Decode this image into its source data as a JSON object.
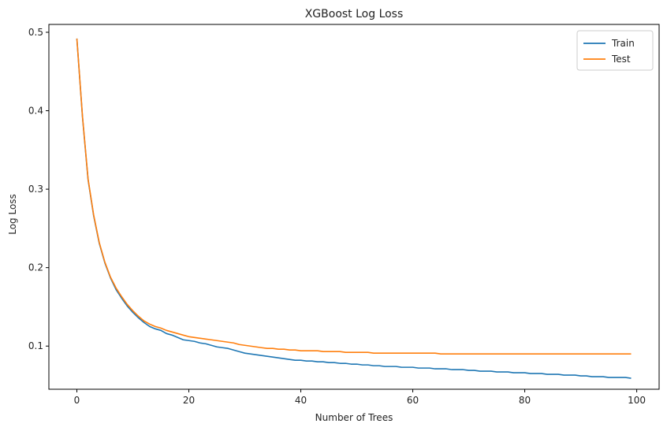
{
  "chart_data": {
    "type": "line",
    "title": "XGBoost Log Loss",
    "xlabel": "Number of Trees",
    "ylabel": "Log Loss",
    "xlim": [
      -5,
      104
    ],
    "ylim": [
      0.045,
      0.51
    ],
    "xticks": [
      0,
      20,
      40,
      60,
      80,
      100
    ],
    "yticks": [
      0.1,
      0.2,
      0.3,
      0.4,
      0.5
    ],
    "xtick_labels": [
      "0",
      "20",
      "40",
      "60",
      "80",
      "100"
    ],
    "ytick_labels": [
      "0.1",
      "0.2",
      "0.3",
      "0.4",
      "0.5"
    ],
    "grid": false,
    "legend_position": "top-right",
    "series": [
      {
        "name": "Train",
        "color": "#1f77b4",
        "values": [
          0.492,
          0.392,
          0.312,
          0.266,
          0.231,
          0.206,
          0.187,
          0.172,
          0.161,
          0.151,
          0.143,
          0.136,
          0.13,
          0.125,
          0.122,
          0.12,
          0.116,
          0.114,
          0.111,
          0.108,
          0.107,
          0.106,
          0.104,
          0.103,
          0.101,
          0.099,
          0.098,
          0.097,
          0.095,
          0.093,
          0.091,
          0.09,
          0.089,
          0.088,
          0.087,
          0.086,
          0.085,
          0.084,
          0.083,
          0.082,
          0.082,
          0.081,
          0.081,
          0.08,
          0.08,
          0.079,
          0.079,
          0.078,
          0.078,
          0.077,
          0.077,
          0.076,
          0.076,
          0.075,
          0.075,
          0.074,
          0.074,
          0.074,
          0.073,
          0.073,
          0.073,
          0.072,
          0.072,
          0.072,
          0.071,
          0.071,
          0.071,
          0.07,
          0.07,
          0.07,
          0.069,
          0.069,
          0.068,
          0.068,
          0.068,
          0.067,
          0.067,
          0.067,
          0.066,
          0.066,
          0.066,
          0.065,
          0.065,
          0.065,
          0.064,
          0.064,
          0.064,
          0.063,
          0.063,
          0.063,
          0.062,
          0.062,
          0.061,
          0.061,
          0.061,
          0.06,
          0.06,
          0.06,
          0.06,
          0.059
        ]
      },
      {
        "name": "Test",
        "color": "#ff7f0e",
        "values": [
          0.492,
          0.393,
          0.313,
          0.267,
          0.232,
          0.207,
          0.188,
          0.174,
          0.163,
          0.153,
          0.145,
          0.138,
          0.132,
          0.128,
          0.125,
          0.123,
          0.12,
          0.118,
          0.116,
          0.114,
          0.112,
          0.111,
          0.11,
          0.109,
          0.108,
          0.107,
          0.106,
          0.105,
          0.104,
          0.102,
          0.101,
          0.1,
          0.099,
          0.098,
          0.097,
          0.097,
          0.096,
          0.096,
          0.095,
          0.095,
          0.094,
          0.094,
          0.094,
          0.094,
          0.093,
          0.093,
          0.093,
          0.093,
          0.092,
          0.092,
          0.092,
          0.092,
          0.092,
          0.091,
          0.091,
          0.091,
          0.091,
          0.091,
          0.091,
          0.091,
          0.091,
          0.091,
          0.091,
          0.091,
          0.091,
          0.09,
          0.09,
          0.09,
          0.09,
          0.09,
          0.09,
          0.09,
          0.09,
          0.09,
          0.09,
          0.09,
          0.09,
          0.09,
          0.09,
          0.09,
          0.09,
          0.09,
          0.09,
          0.09,
          0.09,
          0.09,
          0.09,
          0.09,
          0.09,
          0.09,
          0.09,
          0.09,
          0.09,
          0.09,
          0.09,
          0.09,
          0.09,
          0.09,
          0.09,
          0.09
        ]
      }
    ]
  }
}
